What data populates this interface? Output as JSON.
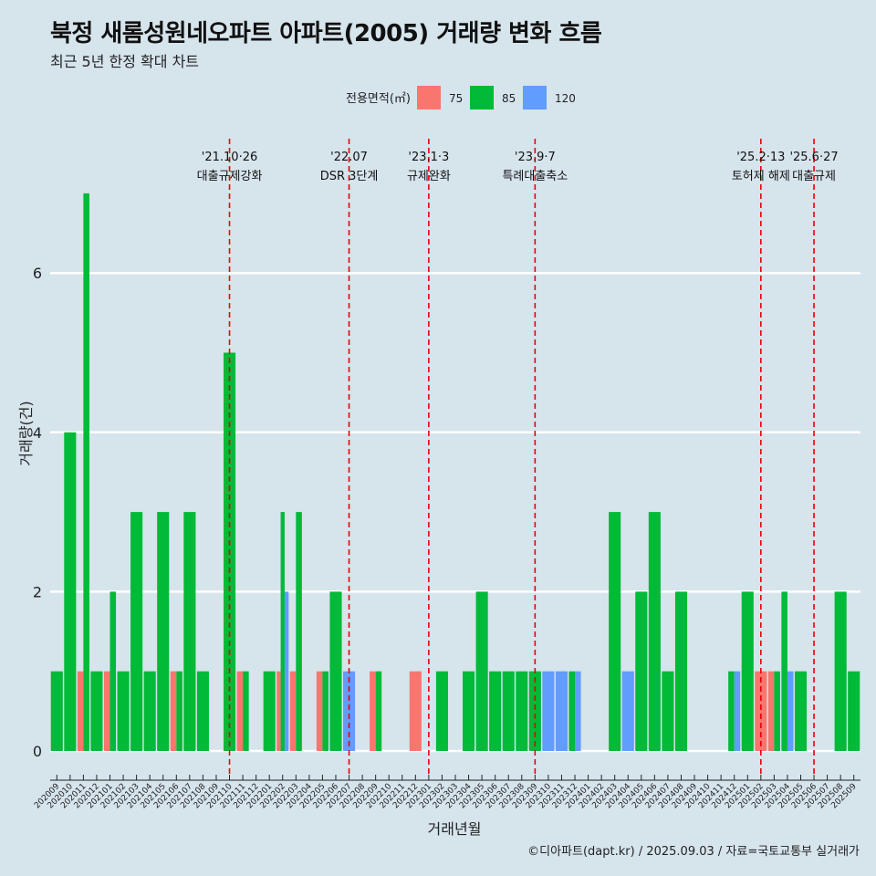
{
  "title": "북정 새롬성원네오파트 아파트(2005) 거래량 변화 흐름",
  "subtitle": "최근 5년 한정 확대 차트",
  "caption": "©디아파트(dapt.kr) / 2025.09.03 / 자료=국토교통부 실거래가",
  "colors": {
    "background": "#d6e4ec",
    "s75": "#f8766d",
    "s85": "#00ba38",
    "s120": "#619cff",
    "event": "#e8000b"
  },
  "chart_data": {
    "type": "bar",
    "xlabel": "거래년월",
    "ylabel": "거래량(건)",
    "ylim": [
      0,
      7
    ],
    "yticks": [
      0,
      2,
      4,
      6
    ],
    "legend_title": "전용면적(㎡)",
    "legend_position": "top",
    "grid": "horizontal major",
    "categories": [
      "202009",
      "202010",
      "202011",
      "202012",
      "202101",
      "202102",
      "202103",
      "202104",
      "202105",
      "202106",
      "202107",
      "202108",
      "202109",
      "202110",
      "202111",
      "202112",
      "202201",
      "202202",
      "202203",
      "202204",
      "202205",
      "202206",
      "202207",
      "202208",
      "202209",
      "202210",
      "202211",
      "202212",
      "202301",
      "202302",
      "202303",
      "202304",
      "202305",
      "202306",
      "202307",
      "202308",
      "202309",
      "202310",
      "202311",
      "202312",
      "202401",
      "202402",
      "202403",
      "202404",
      "202405",
      "202406",
      "202407",
      "202408",
      "202409",
      "202410",
      "202411",
      "202412",
      "202501",
      "202502",
      "202503",
      "202504",
      "202505",
      "202506",
      "202507",
      "202508",
      "202509"
    ],
    "series": [
      {
        "name": "75",
        "color": "#f8766d",
        "values": [
          0,
          0,
          1,
          0,
          1,
          0,
          0,
          0,
          0,
          1,
          0,
          0,
          0,
          0,
          1,
          0,
          0,
          1,
          1,
          0,
          1,
          0,
          0,
          0,
          1,
          0,
          0,
          1,
          0,
          0,
          0,
          0,
          0,
          0,
          0,
          0,
          0,
          0,
          0,
          0,
          0,
          0,
          0,
          0,
          0,
          0,
          0,
          0,
          0,
          0,
          0,
          0,
          0,
          1,
          1,
          0,
          0,
          0,
          0,
          0,
          0
        ]
      },
      {
        "name": "85",
        "color": "#00ba38",
        "values": [
          1,
          4,
          7,
          1,
          2,
          1,
          3,
          1,
          3,
          1,
          3,
          1,
          0,
          5,
          1,
          0,
          1,
          3,
          3,
          0,
          1,
          2,
          0,
          0,
          1,
          0,
          0,
          0,
          0,
          1,
          0,
          1,
          2,
          1,
          1,
          1,
          1,
          0,
          0,
          1,
          0,
          0,
          3,
          0,
          2,
          3,
          1,
          2,
          0,
          0,
          0,
          1,
          2,
          0,
          1,
          2,
          1,
          0,
          0,
          2,
          1
        ]
      },
      {
        "name": "120",
        "color": "#619cff",
        "values": [
          0,
          0,
          0,
          0,
          0,
          0,
          0,
          0,
          0,
          0,
          0,
          0,
          0,
          0,
          0,
          0,
          0,
          2,
          0,
          0,
          0,
          0,
          1,
          0,
          0,
          0,
          0,
          0,
          0,
          0,
          0,
          0,
          0,
          0,
          0,
          0,
          0,
          1,
          1,
          1,
          0,
          0,
          0,
          1,
          0,
          0,
          0,
          0,
          0,
          0,
          0,
          1,
          0,
          0,
          0,
          1,
          0,
          0,
          0,
          0,
          0
        ]
      }
    ],
    "events": [
      {
        "category": "202110",
        "date": "'21.10·26",
        "label": "대출규제강화"
      },
      {
        "category": "202207",
        "date": "'22.07",
        "label": "DSR 3단계"
      },
      {
        "category": "202301",
        "date": "'23.1·3",
        "label": "규제완화"
      },
      {
        "category": "202309",
        "date": "'23.9·7",
        "label": "특례대출축소"
      },
      {
        "category": "202502",
        "date": "'25.2·13",
        "label": "토허제 해제"
      },
      {
        "category": "202506",
        "date": "'25.6·27",
        "label": "대출규제"
      }
    ]
  }
}
